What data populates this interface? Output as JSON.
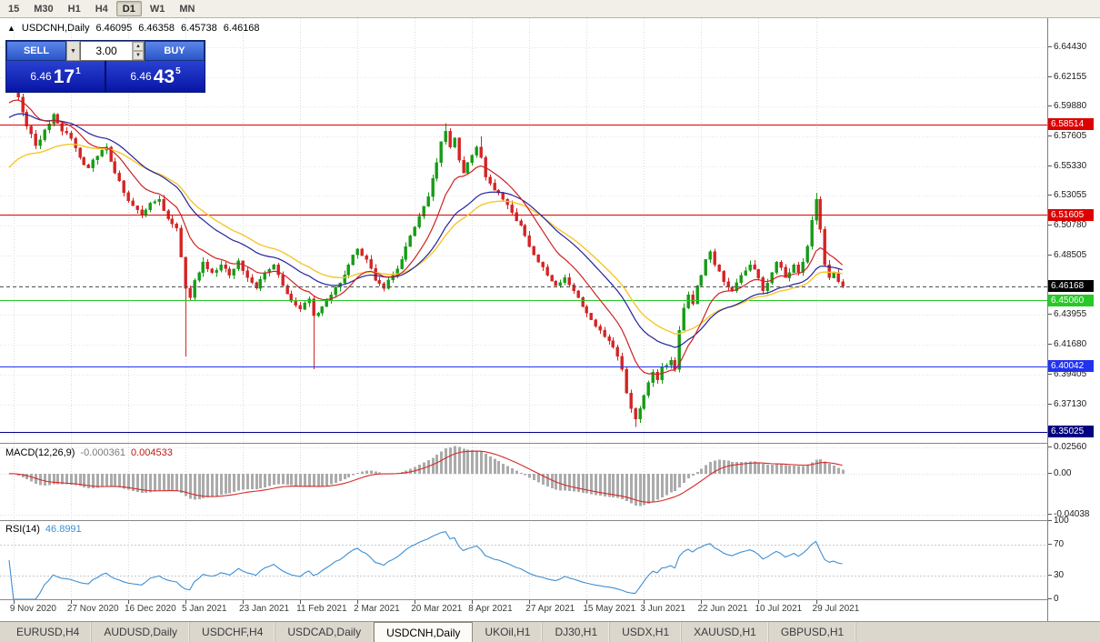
{
  "toolbar": {
    "timeframes": [
      {
        "label": "15",
        "active": false
      },
      {
        "label": "M30",
        "active": false
      },
      {
        "label": "H1",
        "active": false
      },
      {
        "label": "H4",
        "active": false
      },
      {
        "label": "D1",
        "active": true
      },
      {
        "label": "W1",
        "active": false
      },
      {
        "label": "MN",
        "active": false
      }
    ]
  },
  "quote": {
    "symbol": "USDCNH,Daily",
    "open": "6.46095",
    "high": "6.46358",
    "low": "6.45738",
    "close": "6.46168"
  },
  "one_click": {
    "sell_label": "SELL",
    "buy_label": "BUY",
    "volume": "3.00",
    "sell_price": {
      "prefix": "6.46",
      "pips": "17",
      "point": "1"
    },
    "buy_price": {
      "prefix": "6.46",
      "pips": "43",
      "point": "5"
    }
  },
  "tabs": [
    {
      "label": "EURUSD,H4",
      "active": false
    },
    {
      "label": "AUDUSD,Daily",
      "active": false
    },
    {
      "label": "USDCHF,H4",
      "active": false
    },
    {
      "label": "USDCAD,Daily",
      "active": false
    },
    {
      "label": "USDCNH,Daily",
      "active": true
    },
    {
      "label": "UKOil,H1",
      "active": false
    },
    {
      "label": "DJ30,H1",
      "active": false
    },
    {
      "label": "USDX,H1",
      "active": false
    },
    {
      "label": "XAUUSD,H1",
      "active": false
    },
    {
      "label": "GBPUSD,H1",
      "active": false
    }
  ],
  "chart_data": {
    "type": "candlestick",
    "symbol": "USDCNH",
    "timeframe": "Daily",
    "last_ohlc": {
      "open": 6.46095,
      "high": 6.46358,
      "low": 6.45738,
      "close": 6.46168
    },
    "bar_count": 190,
    "ylim": [
      6.3418,
      6.6664
    ],
    "bull_color": "#169b16",
    "bear_color": "#d32424",
    "seed": 20210803,
    "noise": 0.0016,
    "wick": 0.0035,
    "close_anchors": [
      [
        0,
        6.622
      ],
      [
        2,
        6.606
      ],
      [
        4,
        6.584
      ],
      [
        6,
        6.569
      ],
      [
        8,
        6.581
      ],
      [
        10,
        6.593
      ],
      [
        12,
        6.58
      ],
      [
        14,
        6.5745
      ],
      [
        16,
        6.56
      ],
      [
        18,
        6.552
      ],
      [
        20,
        6.561
      ],
      [
        22,
        6.568
      ],
      [
        24,
        6.548
      ],
      [
        26,
        6.533
      ],
      [
        28,
        6.523
      ],
      [
        30,
        6.516
      ],
      [
        32,
        6.525
      ],
      [
        34,
        6.528
      ],
      [
        36,
        6.513
      ],
      [
        38,
        6.506
      ],
      [
        40,
        6.46
      ],
      [
        41,
        6.453
      ],
      [
        42,
        6.466
      ],
      [
        44,
        6.48
      ],
      [
        46,
        6.472
      ],
      [
        48,
        6.478
      ],
      [
        50,
        6.47
      ],
      [
        52,
        6.481
      ],
      [
        54,
        6.468
      ],
      [
        56,
        6.46
      ],
      [
        58,
        6.472
      ],
      [
        60,
        6.478
      ],
      [
        62,
        6.462
      ],
      [
        64,
        6.45
      ],
      [
        66,
        6.444
      ],
      [
        68,
        6.452
      ],
      [
        69,
        6.439
      ],
      [
        71,
        6.446
      ],
      [
        73,
        6.455
      ],
      [
        75,
        6.464
      ],
      [
        77,
        6.478
      ],
      [
        79,
        6.49
      ],
      [
        81,
        6.482
      ],
      [
        83,
        6.466
      ],
      [
        85,
        6.46
      ],
      [
        87,
        6.47
      ],
      [
        89,
        6.482
      ],
      [
        91,
        6.5
      ],
      [
        93,
        6.515
      ],
      [
        95,
        6.53
      ],
      [
        97,
        6.556
      ],
      [
        98,
        6.572
      ],
      [
        99,
        6.58
      ],
      [
        100,
        6.568
      ],
      [
        101,
        6.575
      ],
      [
        102,
        6.558
      ],
      [
        103,
        6.548
      ],
      [
        104,
        6.556
      ],
      [
        106,
        6.568
      ],
      [
        107,
        6.56
      ],
      [
        108,
        6.545
      ],
      [
        110,
        6.535
      ],
      [
        112,
        6.528
      ],
      [
        114,
        6.518
      ],
      [
        116,
        6.508
      ],
      [
        118,
        6.492
      ],
      [
        120,
        6.48
      ],
      [
        122,
        6.47
      ],
      [
        124,
        6.462
      ],
      [
        126,
        6.468
      ],
      [
        128,
        6.458
      ],
      [
        130,
        6.446
      ],
      [
        132,
        6.436
      ],
      [
        134,
        6.428
      ],
      [
        136,
        6.42
      ],
      [
        138,
        6.408
      ],
      [
        139,
        6.398
      ],
      [
        140,
        6.38
      ],
      [
        141,
        6.368
      ],
      [
        142,
        6.36
      ],
      [
        143,
        6.368
      ],
      [
        144,
        6.378
      ],
      [
        145,
        6.388
      ],
      [
        146,
        6.396
      ],
      [
        147,
        6.39
      ],
      [
        148,
        6.4
      ],
      [
        150,
        6.405
      ],
      [
        151,
        6.398
      ],
      [
        152,
        6.428
      ],
      [
        153,
        6.445
      ],
      [
        154,
        6.455
      ],
      [
        155,
        6.448
      ],
      [
        156,
        6.462
      ],
      [
        157,
        6.47
      ],
      [
        158,
        6.482
      ],
      [
        159,
        6.488
      ],
      [
        160,
        6.478
      ],
      [
        162,
        6.465
      ],
      [
        164,
        6.458
      ],
      [
        166,
        6.47
      ],
      [
        168,
        6.478
      ],
      [
        170,
        6.468
      ],
      [
        171,
        6.458
      ],
      [
        172,
        6.464
      ],
      [
        173,
        6.472
      ],
      [
        174,
        6.48
      ],
      [
        175,
        6.476
      ],
      [
        176,
        6.468
      ],
      [
        177,
        6.472
      ],
      [
        178,
        6.478
      ],
      [
        179,
        6.472
      ],
      [
        180,
        6.48
      ],
      [
        181,
        6.492
      ],
      [
        182,
        6.512
      ],
      [
        183,
        6.528
      ],
      [
        184,
        6.505
      ],
      [
        185,
        6.478
      ],
      [
        186,
        6.468
      ],
      [
        187,
        6.472
      ],
      [
        188,
        6.465
      ],
      [
        189,
        6.4617
      ]
    ],
    "wick_overrides": [
      {
        "bar": 0,
        "high": 6.633
      },
      {
        "bar": 40,
        "low": 6.408
      },
      {
        "bar": 69,
        "low": 6.398
      },
      {
        "bar": 99,
        "high": 6.586
      },
      {
        "bar": 107,
        "high": 6.576
      },
      {
        "bar": 142,
        "low": 6.354
      },
      {
        "bar": 183,
        "high": 6.533
      }
    ],
    "moving_averages": [
      {
        "period": 34,
        "type": "ema",
        "color": "#f6c62c",
        "seed_value": 6.548,
        "width": 1.4
      },
      {
        "period": 26,
        "type": "ema",
        "color": "#23239b",
        "seed_value": 6.588,
        "width": 1.2
      },
      {
        "period": 12,
        "type": "ema",
        "color": "#cc2222",
        "seed_value": 6.598,
        "width": 1.2
      }
    ],
    "horizontal_lines": [
      {
        "value": 6.58514,
        "label": "6.58514",
        "color": "#dd0000"
      },
      {
        "value": 6.51605,
        "label": "6.51605",
        "color": "#dd0000"
      },
      {
        "value": 6.4506,
        "label": "6.45060",
        "color": "#28c828"
      },
      {
        "value": 6.40042,
        "label": "6.40042",
        "color": "#2233ee"
      },
      {
        "value": 6.35025,
        "label": "6.35025",
        "color": "#000080"
      }
    ],
    "current_price": {
      "value": 6.46168,
      "label": "6.46168",
      "color": "#000000"
    },
    "price_ticks": [
      {
        "v": 6.6443,
        "label": "6.64430"
      },
      {
        "v": 6.62155,
        "label": "6.62155"
      },
      {
        "v": 6.5988,
        "label": "6.59880"
      },
      {
        "v": 6.57605,
        "label": "6.57605"
      },
      {
        "v": 6.5533,
        "label": "6.55330"
      },
      {
        "v": 6.53055,
        "label": "6.53055"
      },
      {
        "v": 6.5078,
        "label": "6.50780"
      },
      {
        "v": 6.48505,
        "label": "6.48505"
      },
      {
        "v": 6.4623,
        "label": "6.46230"
      },
      {
        "v": 6.43955,
        "label": "6.43955"
      },
      {
        "v": 6.4168,
        "label": "6.41680"
      },
      {
        "v": 6.39405,
        "label": "6.39405"
      },
      {
        "v": 6.3713,
        "label": "6.37130"
      },
      {
        "v": 6.34855,
        "label": "6.34855"
      }
    ],
    "date_ticks": [
      {
        "bar": 1,
        "label": "9 Nov 2020"
      },
      {
        "bar": 14,
        "label": "27 Nov 2020"
      },
      {
        "bar": 27,
        "label": "16 Dec 2020"
      },
      {
        "bar": 40,
        "label": "5 Jan 2021"
      },
      {
        "bar": 53,
        "label": "23 Jan 2021"
      },
      {
        "bar": 66,
        "label": "11 Feb 2021"
      },
      {
        "bar": 79,
        "label": "2 Mar 2021"
      },
      {
        "bar": 92,
        "label": "20 Mar 2021"
      },
      {
        "bar": 105,
        "label": "8 Apr 2021"
      },
      {
        "bar": 118,
        "label": "27 Apr 2021"
      },
      {
        "bar": 131,
        "label": "15 May 2021"
      },
      {
        "bar": 144,
        "label": "3 Jun 2021"
      },
      {
        "bar": 157,
        "label": "22 Jun 2021"
      },
      {
        "bar": 170,
        "label": "10 Jul 2021"
      },
      {
        "bar": 183,
        "label": "29 Jul 2021"
      }
    ],
    "macd": {
      "title": "MACD(12,26,9)",
      "value_main": "-0.000361",
      "value_signal": "0.004533",
      "fast": 12,
      "slow": 26,
      "signal": 9,
      "ylim": [
        -0.045,
        0.0285
      ],
      "ticks": [
        {
          "v": 0.0256,
          "label": "0.02560"
        },
        {
          "v": 0,
          "label": "0.00"
        },
        {
          "v": -0.04038,
          "label": "-0.04038"
        }
      ],
      "histogram_color": "#ababab",
      "signal_color": "#d42a2a"
    },
    "rsi": {
      "title": "RSI(14)",
      "value": "46.8991",
      "period": 14,
      "ylim": [
        0,
        100
      ],
      "levels": [
        70,
        30
      ],
      "ticks": [
        {
          "v": 100,
          "label": "100"
        },
        {
          "v": 70,
          "label": "70"
        },
        {
          "v": 30,
          "label": "30"
        },
        {
          "v": 0,
          "label": "0"
        }
      ],
      "color": "#3d8fd4"
    }
  }
}
